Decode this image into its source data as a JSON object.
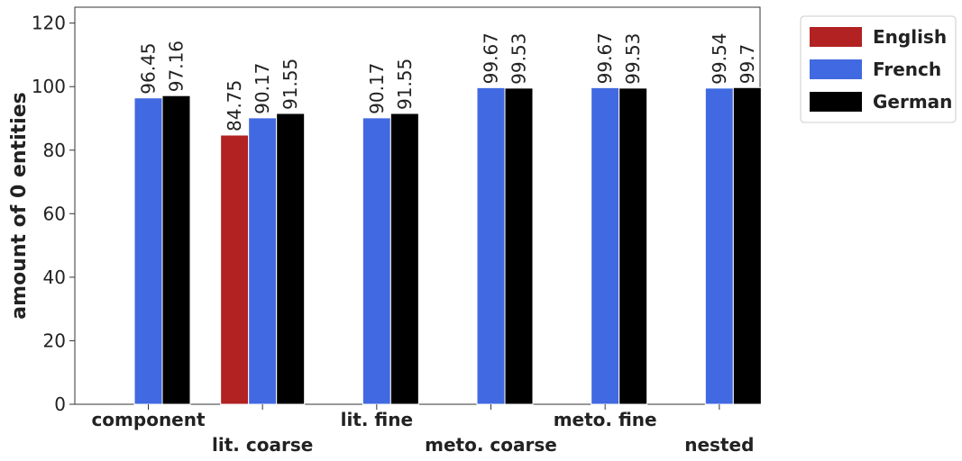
{
  "chart_data": {
    "type": "bar",
    "ylabel": "amount of 0 entities",
    "ylim": [
      0,
      125
    ],
    "yticks": [
      0,
      20,
      40,
      60,
      80,
      100,
      120
    ],
    "categories": [
      "component",
      "lit. coarse",
      "lit. fine",
      "meto. coarse",
      "meto. fine",
      "nested"
    ],
    "series": [
      {
        "name": "English",
        "color": "#b22222",
        "values": [
          null,
          84.75,
          null,
          null,
          null,
          null
        ]
      },
      {
        "name": "French",
        "color": "#4169e1",
        "values": [
          96.45,
          90.17,
          90.17,
          99.67,
          99.67,
          99.54
        ]
      },
      {
        "name": "German",
        "color": "#000000",
        "values": [
          97.16,
          91.55,
          91.55,
          99.53,
          99.53,
          99.7
        ]
      }
    ],
    "data_labels": [
      [
        "",
        "84.75",
        "",
        "",
        "",
        ""
      ],
      [
        "96.45",
        "90.17",
        "90.17",
        "99.67",
        "99.67",
        "99.54"
      ],
      [
        "97.16",
        "91.55",
        "91.55",
        "99.53",
        "99.53",
        "99.7"
      ]
    ],
    "legend_position": "outside-top-right",
    "grid": false
  }
}
